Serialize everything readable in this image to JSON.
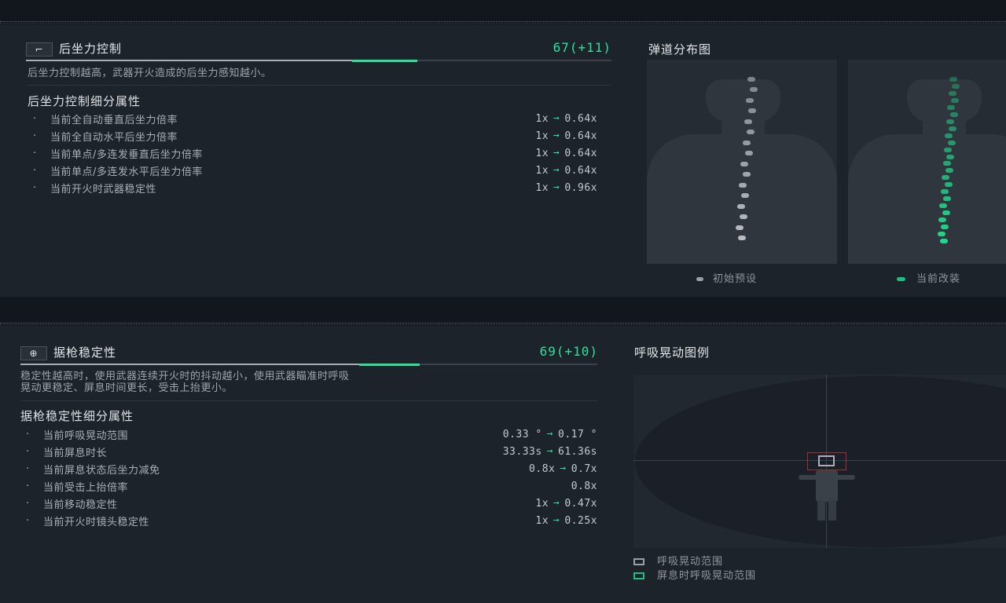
{
  "recoil": {
    "icon": "rifle-icon",
    "title": "后坐力控制",
    "score": "67(+11)",
    "base_fraction": 0.56,
    "bonus_fraction": 0.11,
    "description": "后坐力控制越高，武器开火造成的后坐力感知越小。",
    "subtitle": "后坐力控制细分属性",
    "rows": [
      {
        "label": "当前全自动垂直后坐力倍率",
        "from": "1x",
        "to": "0.64x"
      },
      {
        "label": "当前全自动水平后坐力倍率",
        "from": "1x",
        "to": "0.64x"
      },
      {
        "label": "当前单点/多连发垂直后坐力倍率",
        "from": "1x",
        "to": "0.64x"
      },
      {
        "label": "当前单点/多连发水平后坐力倍率",
        "from": "1x",
        "to": "0.64x"
      },
      {
        "label": "当前开火时武器稳定性",
        "from": "1x",
        "to": "0.96x"
      }
    ],
    "chart": {
      "title": "弹道分布图",
      "legend": [
        {
          "label": "初始预设",
          "color": "#9aa0a6"
        },
        {
          "label": "当前改装",
          "color": "#1fbf7f"
        }
      ]
    }
  },
  "stability": {
    "icon": "crosshair-icon",
    "title": "据枪稳定性",
    "score": "69(+10)",
    "base_fraction": 0.6,
    "bonus_fraction": 0.105,
    "description_lines": [
      "稳定性越高时，使用武器连续开火时的抖动越小，使用武器瞄准时呼吸",
      "晃动更稳定、屏息时间更长，受击上抬更小。"
    ],
    "subtitle": "据枪稳定性细分属性",
    "rows": [
      {
        "label": "当前呼吸晃动范围",
        "from": "0.33 °",
        "to": "0.17 °"
      },
      {
        "label": "当前屏息时长",
        "from": "33.33s",
        "to": "61.36s"
      },
      {
        "label": "当前屏息状态后坐力减免",
        "from": "0.8x",
        "to": "0.7x"
      },
      {
        "label": "当前受击上抬倍率",
        "from": "",
        "to": "0.8x"
      },
      {
        "label": "当前移动稳定性",
        "from": "1x",
        "to": "0.47x"
      },
      {
        "label": "当前开火时镜头稳定性",
        "from": "1x",
        "to": "0.25x"
      }
    ],
    "chart": {
      "title": "呼吸晃动图例",
      "legend": [
        {
          "label": "呼吸晃动范围",
          "color": "#c9cdd2"
        },
        {
          "label": "屏息时呼吸晃动范围",
          "color": "#1fbf7f"
        }
      ]
    }
  },
  "colors": {
    "accent": "#2fe09a",
    "panel": "#1d232b"
  }
}
